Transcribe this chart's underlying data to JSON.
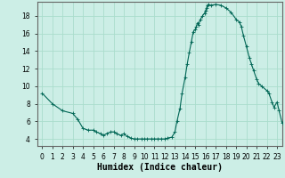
{
  "title": "",
  "xlabel": "Humidex (Indice chaleur)",
  "ylabel": "",
  "bg_color": "#cceee6",
  "grid_color_major": "#aaddcc",
  "grid_color_minor": "#bbeedf",
  "line_color": "#006655",
  "marker_color": "#006655",
  "xlim": [
    -0.5,
    23.5
  ],
  "ylim": [
    3.2,
    19.6
  ],
  "yticks": [
    4,
    6,
    8,
    10,
    12,
    14,
    16,
    18
  ],
  "xtick_labels": [
    "0",
    "1",
    "2",
    "3",
    "4",
    "5",
    "6",
    "7",
    "8",
    "9",
    "10",
    "11",
    "12",
    "13",
    "14",
    "15",
    "16",
    "17",
    "18",
    "19",
    "20",
    "21",
    "22",
    "23"
  ],
  "x_points": [
    0,
    1,
    2,
    3,
    3.5,
    4,
    4.5,
    5,
    5.3,
    5.7,
    6,
    6.3,
    6.7,
    7,
    7.3,
    7.7,
    8,
    8.3,
    8.7,
    9,
    9.3,
    9.7,
    10,
    10.3,
    10.7,
    11,
    11.3,
    11.7,
    12,
    12.3,
    12.7,
    13,
    13.2,
    13.5,
    13.7,
    14.0,
    14.2,
    14.4,
    14.6,
    14.8,
    15.0,
    15.1,
    15.2,
    15.3,
    15.5,
    15.7,
    15.9,
    16.0,
    16.1,
    16.2,
    16.3,
    16.5,
    17.0,
    17.5,
    18.0,
    18.5,
    19.0,
    19.3,
    19.5,
    19.7,
    20.0,
    20.3,
    20.5,
    20.7,
    21.0,
    21.2,
    21.5,
    22.0,
    22.2,
    22.5,
    22.7,
    23.0,
    23.2,
    23.5
  ],
  "y_points": [
    9.2,
    8.0,
    7.2,
    6.9,
    6.2,
    5.2,
    5.0,
    5.0,
    4.8,
    4.6,
    4.4,
    4.6,
    4.8,
    4.8,
    4.6,
    4.4,
    4.6,
    4.3,
    4.1,
    4.0,
    4.0,
    4.0,
    4.0,
    4.0,
    4.0,
    4.0,
    4.0,
    4.0,
    4.0,
    4.1,
    4.2,
    4.8,
    6.0,
    7.5,
    9.2,
    11.0,
    12.5,
    13.8,
    15.0,
    16.2,
    16.5,
    16.8,
    17.2,
    17.0,
    17.6,
    18.0,
    18.3,
    18.6,
    18.9,
    19.2,
    19.3,
    19.2,
    19.3,
    19.2,
    18.9,
    18.4,
    17.6,
    17.3,
    16.8,
    15.8,
    14.5,
    13.2,
    12.5,
    11.8,
    10.8,
    10.3,
    10.0,
    9.5,
    9.2,
    8.2,
    7.6,
    8.2,
    7.2,
    5.8
  ]
}
